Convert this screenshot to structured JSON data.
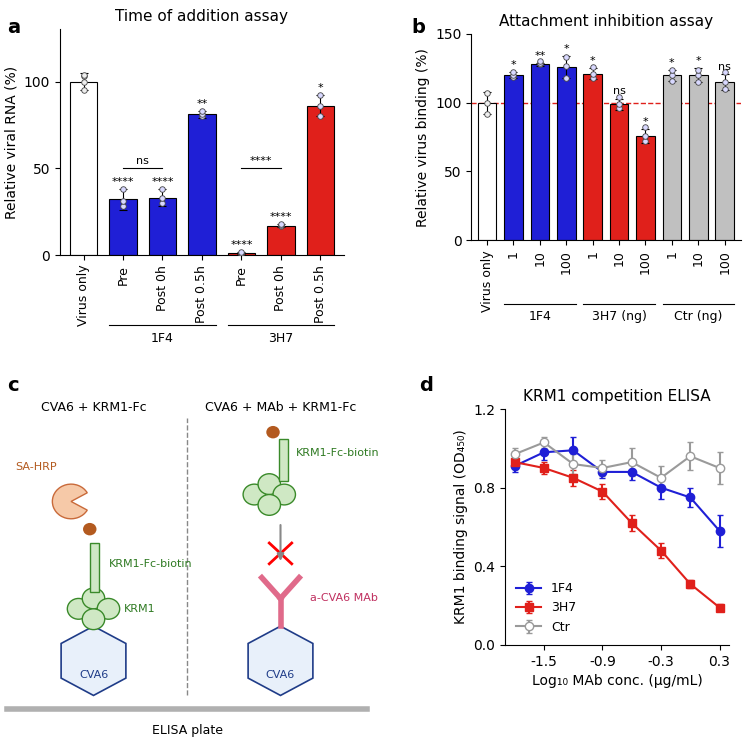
{
  "chart_data": [
    {
      "type": "bar",
      "panel": "a",
      "title": "Time of addition assay",
      "y_label": "Relative viral RNA (%)",
      "categories": [
        "Virus only",
        "Pre",
        "Post 0h",
        "Post 0.5h",
        "Pre",
        "Post 0h",
        "Post 0.5h"
      ],
      "groups": [
        null,
        "1F4",
        "1F4",
        "1F4",
        "3H7",
        "3H7",
        "3H7"
      ],
      "values": [
        100,
        32,
        33,
        81,
        1,
        17,
        86
      ],
      "errors": [
        5,
        6,
        5,
        2,
        0.5,
        1,
        6
      ],
      "points": [
        [
          95,
          100,
          103,
          104
        ],
        [
          28,
          31,
          38
        ],
        [
          30,
          33,
          38
        ],
        [
          80,
          81,
          83
        ],
        [
          0.5,
          1,
          1.5
        ],
        [
          17,
          17.5,
          18
        ],
        [
          80,
          86,
          92
        ]
      ],
      "colors": [
        "#ffffff",
        "#1f1fd6",
        "#1f1fd6",
        "#1f1fd6",
        "#e0201b",
        "#e0201b",
        "#e0201b"
      ],
      "significance": [
        null,
        "****",
        "****",
        "**",
        "****",
        "****",
        "*"
      ],
      "comparisons": [
        {
          "from": 1,
          "to": 2,
          "y": 50,
          "label": "ns"
        },
        {
          "from": 4,
          "to": 5,
          "y": 50,
          "label": "****"
        }
      ],
      "ylim": [
        0,
        130
      ],
      "yticks": [
        0,
        50,
        100
      ]
    },
    {
      "type": "bar",
      "panel": "b",
      "title": "Attachment inhibition assay",
      "y_label": "Relative virus binding (%)",
      "categories": [
        "Virus only",
        "1",
        "10",
        "100",
        "1",
        "10",
        "100",
        "1",
        "10",
        "100"
      ],
      "groups": [
        null,
        "1F4",
        "1F4",
        "1F4",
        "3H7 (ng)",
        "3H7 (ng)",
        "3H7 (ng)",
        "Ctr (ng)",
        "Ctr (ng)",
        "Ctr (ng)"
      ],
      "values": [
        100,
        120,
        128,
        126,
        121,
        99,
        76,
        120,
        120,
        115
      ],
      "errors": [
        8,
        2,
        1,
        8,
        4,
        4,
        5,
        4,
        5,
        6
      ],
      "points": [
        [
          92,
          100,
          107
        ],
        [
          119,
          120,
          122
        ],
        [
          128,
          129,
          130
        ],
        [
          118,
          127,
          133
        ],
        [
          118,
          121,
          126
        ],
        [
          96,
          99,
          104
        ],
        [
          72,
          76,
          82
        ],
        [
          116,
          120,
          124
        ],
        [
          115,
          120,
          124
        ],
        [
          110,
          115,
          122
        ]
      ],
      "colors": [
        "#ffffff",
        "#1f1fd6",
        "#1f1fd6",
        "#1f1fd6",
        "#e0201b",
        "#e0201b",
        "#e0201b",
        "#c0c0c0",
        "#c0c0c0",
        "#c0c0c0"
      ],
      "significance": [
        null,
        "*",
        "**",
        "*",
        "*",
        "ns",
        "*",
        "*",
        "*",
        "ns"
      ],
      "reference_line": {
        "y": 100,
        "color": "#e0201b"
      },
      "ylim": [
        0,
        150
      ],
      "yticks": [
        0,
        50,
        100,
        150
      ]
    },
    {
      "type": "line",
      "panel": "d",
      "title": "KRM1 competition ELISA",
      "x_label": "Log₁₀ MAb conc. (μg/mL)",
      "y_label": "KRM1 binding signal (OD₄₅₀)",
      "x": [
        -1.8,
        -1.5,
        -1.2,
        -0.9,
        -0.6,
        -0.3,
        0.0,
        0.3
      ],
      "series": [
        {
          "name": "1F4",
          "color": "#1f1fd6",
          "marker": "circle",
          "values": [
            0.91,
            0.98,
            0.99,
            0.88,
            0.88,
            0.8,
            0.75,
            0.58
          ],
          "errors": [
            0.03,
            0.04,
            0.07,
            0.03,
            0.04,
            0.06,
            0.05,
            0.08
          ]
        },
        {
          "name": "3H7",
          "color": "#e0201b",
          "marker": "square",
          "values": [
            0.93,
            0.9,
            0.85,
            0.78,
            0.62,
            0.48,
            0.31,
            0.19
          ],
          "errors": [
            0.03,
            0.03,
            0.04,
            0.04,
            0.04,
            0.04,
            0.02,
            0.02
          ]
        },
        {
          "name": "Ctr",
          "color": "#9a9a9a",
          "marker": "open_circle",
          "values": [
            0.97,
            1.03,
            0.92,
            0.9,
            0.93,
            0.85,
            0.96,
            0.9
          ],
          "errors": [
            0.03,
            0.03,
            0.05,
            0.04,
            0.07,
            0.06,
            0.07,
            0.08
          ]
        }
      ],
      "xlim": [
        -1.9,
        0.4
      ],
      "xticks": [
        {
          "value": -1.5,
          "label": "-1.5"
        },
        {
          "value": -0.9,
          "label": "-0.9"
        },
        {
          "value": -0.3,
          "label": "-0.3"
        },
        0.3
      ],
      "ylim": [
        0,
        1.2
      ],
      "yticks": [
        0.0,
        0.4,
        0.8,
        1.2
      ],
      "legend": "lower left"
    }
  ],
  "diagram": {
    "panel": "c",
    "footer": "ELISA plate",
    "left": {
      "title": "CVA6 + KRM1-Fc",
      "virus": "CVA6",
      "receptor": "KRM1",
      "fusion": "KRM1-Fc-biotin",
      "detector": "SA-HRP"
    },
    "right": {
      "title": "CVA6 + MAb + KRM1-Fc",
      "virus": "CVA6",
      "antibody": "a-CVA6 MAb",
      "fusion": "KRM1-Fc-biotin"
    }
  }
}
